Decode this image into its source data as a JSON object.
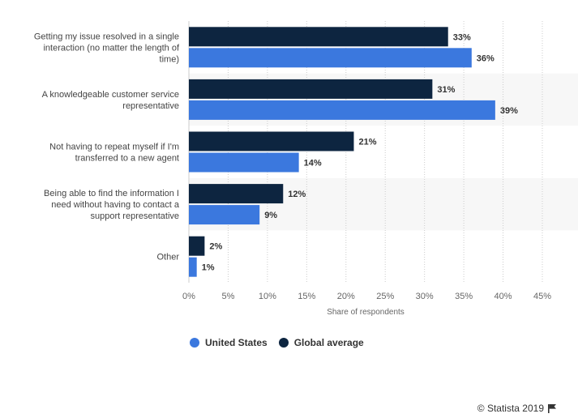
{
  "chart_data": {
    "type": "bar",
    "orientation": "horizontal",
    "categories": [
      [
        "Getting my issue resolved in a single",
        "interaction (no matter the length of",
        "time)"
      ],
      [
        "A knowledgeable customer service",
        "representative"
      ],
      [
        "Not having to repeat myself if I'm",
        "transferred to a new agent"
      ],
      [
        "Being able to find the information I",
        "need without having to contact a",
        "support representative"
      ],
      [
        "Other"
      ]
    ],
    "series": [
      {
        "name": "Global average",
        "color": "#0d2540",
        "values": [
          33,
          31,
          21,
          12,
          2
        ],
        "labels": [
          "33%",
          "31%",
          "21%",
          "12%",
          "2%"
        ]
      },
      {
        "name": "United States",
        "color": "#3b78de",
        "values": [
          36,
          39,
          14,
          9,
          1
        ],
        "labels": [
          "36%",
          "39%",
          "14%",
          "9%",
          "1%"
        ]
      }
    ],
    "xlim": [
      0,
      45
    ],
    "ticks": [
      0,
      5,
      10,
      15,
      20,
      25,
      30,
      35,
      40,
      45
    ],
    "tick_labels": [
      "0%",
      "5%",
      "10%",
      "15%",
      "20%",
      "25%",
      "30%",
      "35%",
      "40%",
      "45%"
    ],
    "xlabel": "Share of respondents",
    "legend_position": "bottom-left",
    "grid": true
  },
  "legend": {
    "items": [
      {
        "label": "United States",
        "color": "#3b78de"
      },
      {
        "label": "Global average",
        "color": "#0d2540"
      }
    ]
  },
  "credits": {
    "text": "© Statista 2019"
  }
}
